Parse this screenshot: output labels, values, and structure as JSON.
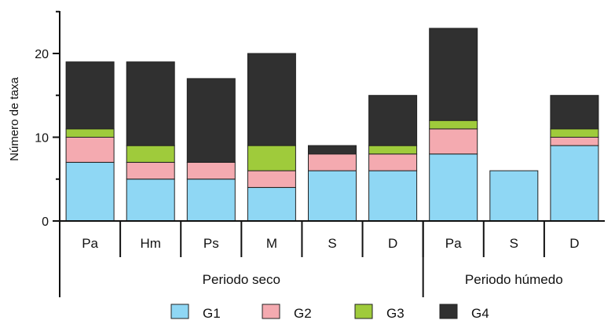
{
  "chart_data": {
    "type": "bar",
    "stacked": true,
    "ylabel": "Número de taxa",
    "xlabel": "",
    "ylim": [
      0,
      25
    ],
    "yticks": [
      0,
      10,
      20
    ],
    "categories": [
      "Pa",
      "Hm",
      "Ps",
      "M",
      "S",
      "D",
      "Pa",
      "S",
      "D"
    ],
    "groups": [
      {
        "label": "Periodo seco",
        "categories_index": [
          0,
          1,
          2,
          3,
          4,
          5
        ]
      },
      {
        "label": "Periodo húmedo",
        "categories_index": [
          6,
          7,
          8
        ]
      }
    ],
    "series": [
      {
        "name": "G1",
        "color": "#8fd7f4",
        "values": [
          7,
          5,
          5,
          4,
          6,
          6,
          8,
          6,
          9
        ]
      },
      {
        "name": "G2",
        "color": "#f4aab0",
        "values": [
          3,
          2,
          2,
          2,
          2,
          2,
          3,
          0,
          1
        ]
      },
      {
        "name": "G3",
        "color": "#9fcb3b",
        "values": [
          1,
          2,
          0,
          3,
          0,
          1,
          1,
          0,
          1
        ]
      },
      {
        "name": "G4",
        "color": "#303030",
        "values": [
          8,
          10,
          10,
          11,
          1,
          6,
          11,
          0,
          4
        ]
      }
    ],
    "legend_position": "bottom",
    "grid": false
  }
}
